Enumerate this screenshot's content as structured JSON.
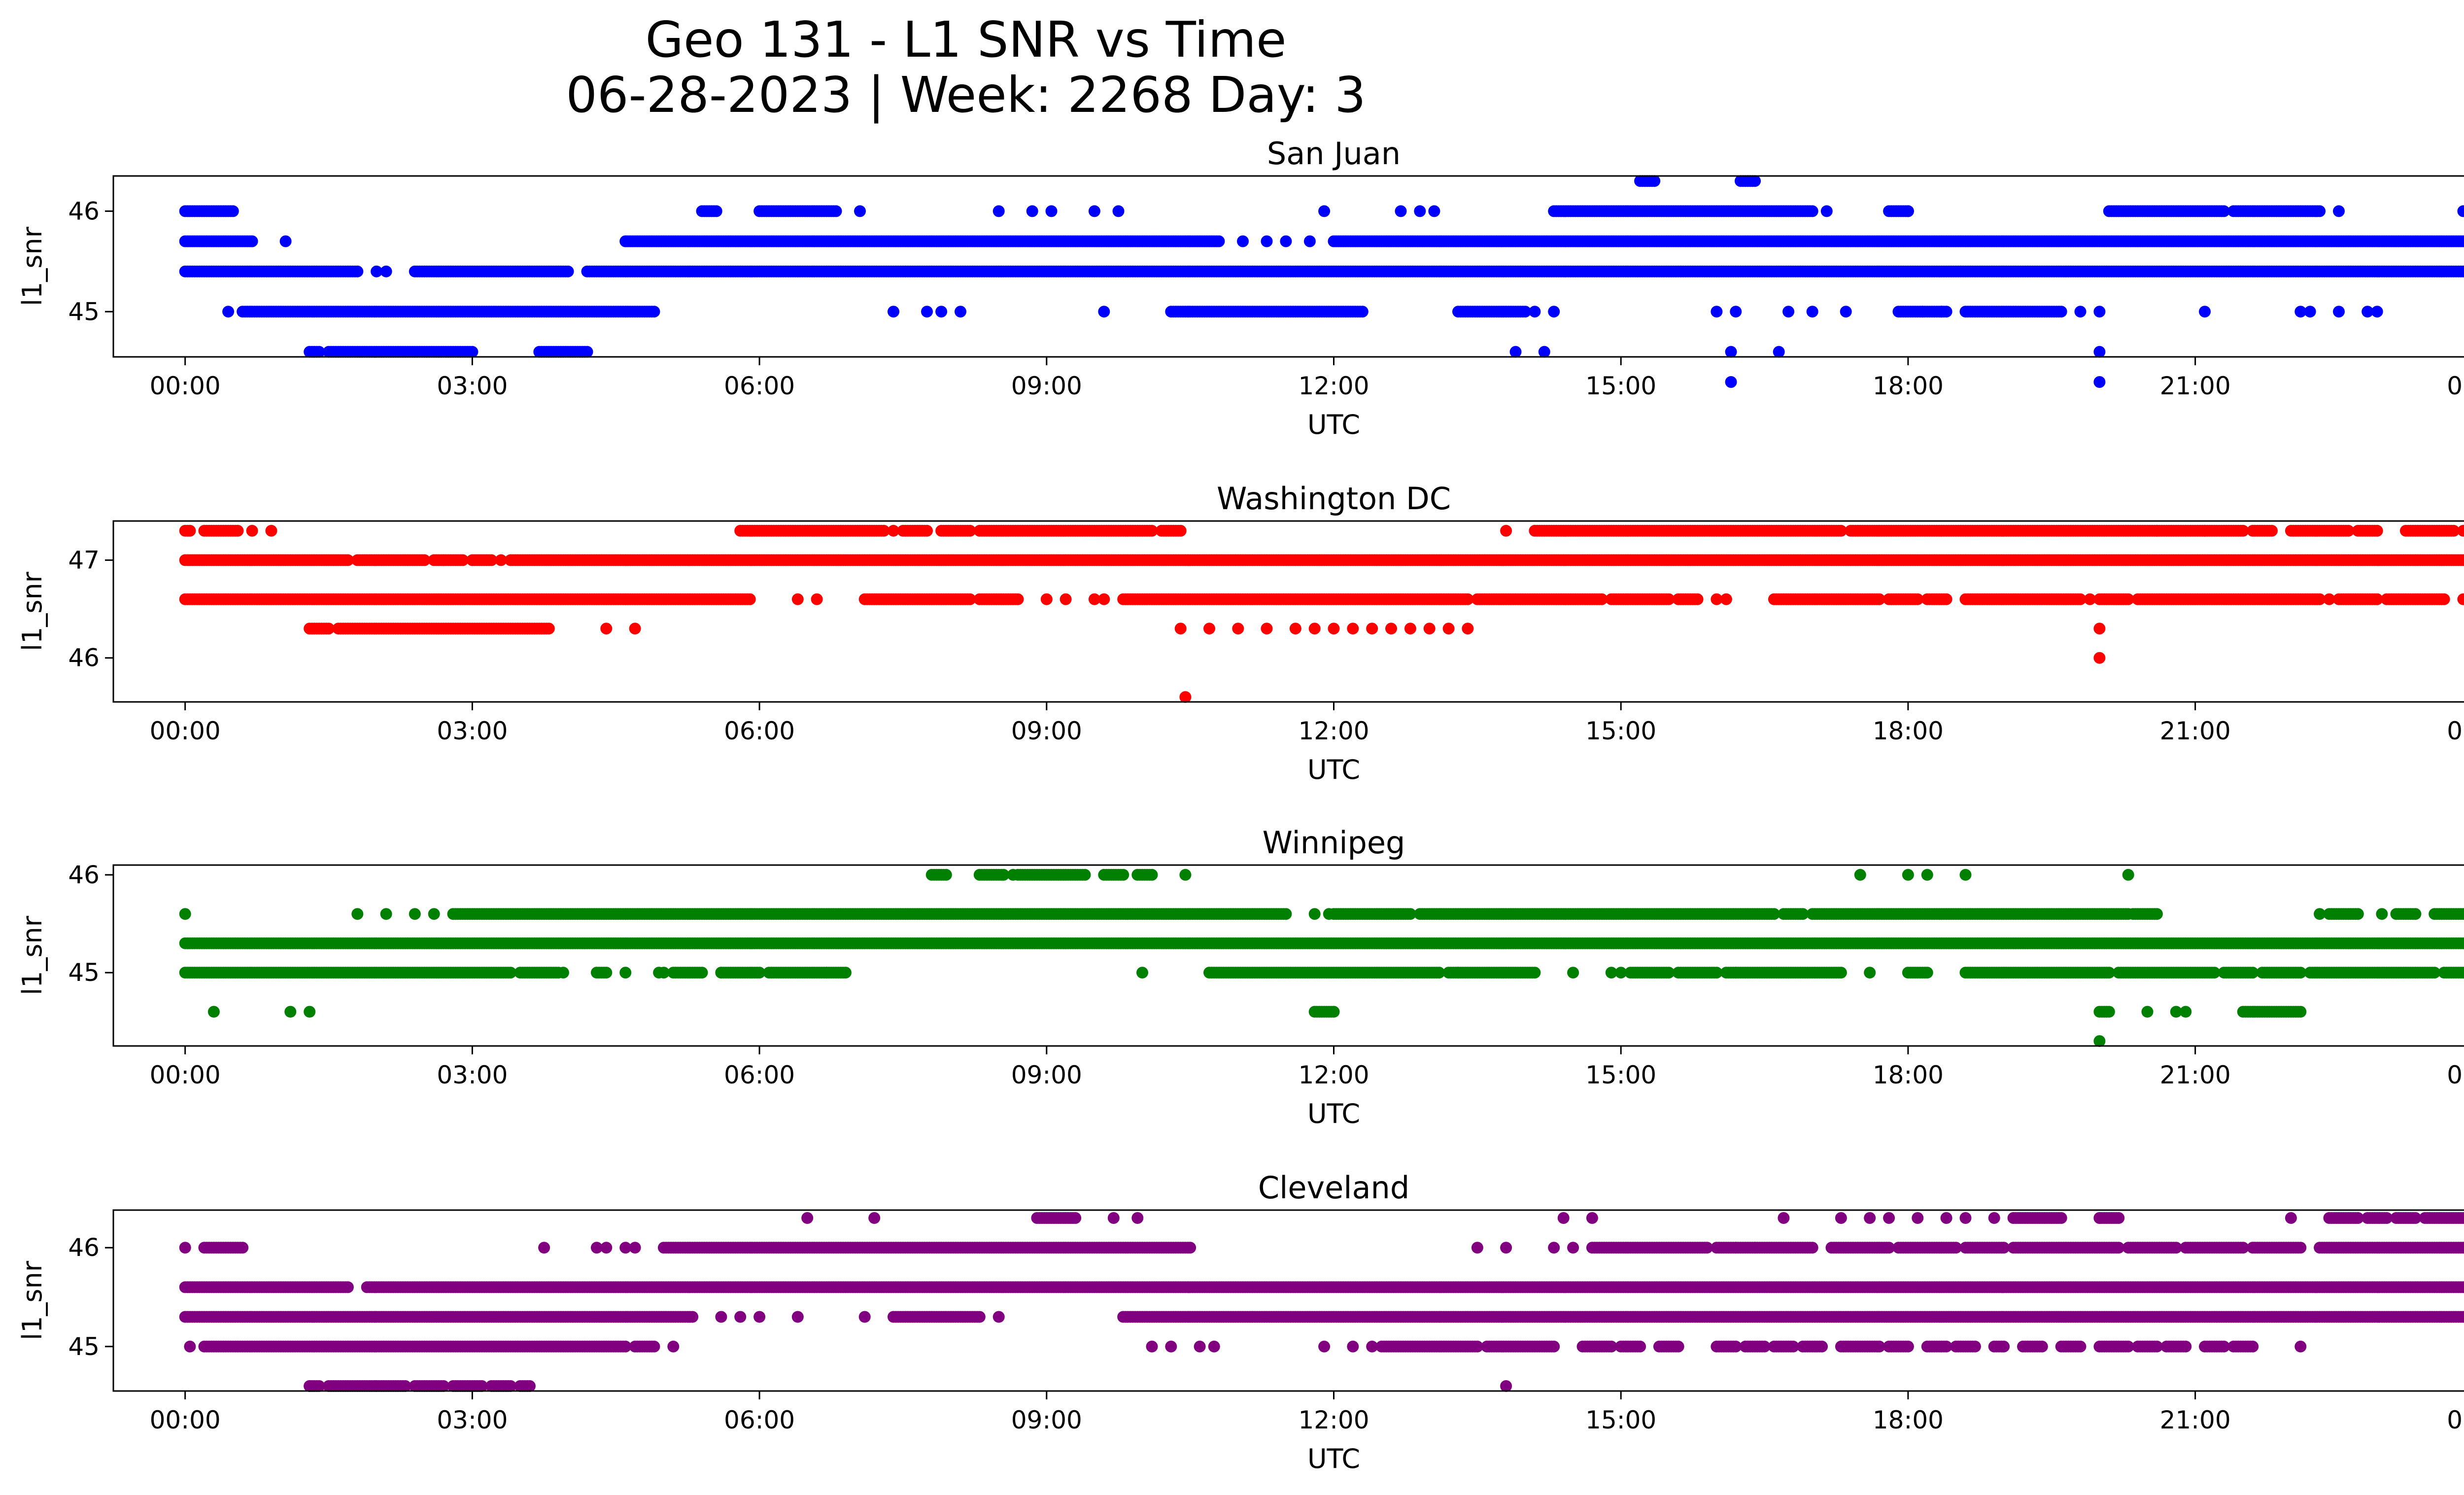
{
  "figure": {
    "title_line1": "Geo 131 - L1 SNR vs Time",
    "title_line2": "06-28-2023 | Week: 2268 Day: 3"
  },
  "chart_data": [
    {
      "type": "scatter",
      "title": "San Juan",
      "xlabel": "UTC",
      "ylabel": "l1_snr",
      "color": "#0000ff",
      "xlim": [
        -0.75,
        24.75
      ],
      "ylim": [
        44.55,
        46.35
      ],
      "xticks": [
        "00:00",
        "03:00",
        "06:00",
        "09:00",
        "12:00",
        "15:00",
        "18:00",
        "21:00",
        "00:00"
      ],
      "yticks": [
        45,
        46
      ],
      "series": [
        {
          "y": 46.3,
          "x_ranges": [
            [
              15.2,
              15.35
            ],
            [
              16.25,
              16.4
            ]
          ],
          "x_points": []
        },
        {
          "y": 46.0,
          "x_ranges": [
            [
              0.0,
              0.5
            ],
            [
              5.4,
              5.55
            ],
            [
              6.0,
              6.8
            ],
            [
              14.3,
              17.0
            ],
            [
              17.8,
              18.0
            ],
            [
              20.1,
              21.3
            ],
            [
              21.4,
              22.3
            ],
            [
              23.8,
              24.0
            ]
          ],
          "x_points": [
            7.05,
            8.5,
            8.85,
            9.05,
            9.5,
            9.75,
            11.9,
            12.7,
            12.9,
            13.05,
            17.15,
            18.0,
            22.5
          ]
        },
        {
          "y": 45.7,
          "x_ranges": [
            [
              0.0,
              0.7
            ],
            [
              4.6,
              10.8
            ],
            [
              12.0,
              24.0
            ]
          ],
          "x_points": [
            1.05,
            11.05,
            11.3,
            11.5,
            11.75
          ]
        },
        {
          "y": 45.4,
          "x_ranges": [
            [
              0.0,
              1.8
            ],
            [
              2.4,
              4.0
            ],
            [
              4.2,
              24.0
            ]
          ],
          "x_points": [
            2.0,
            2.1
          ]
        },
        {
          "y": 45.0,
          "x_ranges": [
            [
              0.6,
              4.9
            ],
            [
              10.3,
              12.3
            ],
            [
              13.3,
              14.0
            ],
            [
              17.9,
              18.4
            ],
            [
              18.6,
              19.6
            ]
          ],
          "x_points": [
            0.45,
            7.4,
            7.75,
            7.9,
            8.1,
            9.6,
            14.1,
            14.3,
            16.0,
            16.2,
            16.75,
            17.0,
            17.35,
            18.15,
            18.35,
            19.8,
            20.0,
            21.1,
            22.1,
            22.2,
            22.5,
            22.8,
            22.9
          ]
        },
        {
          "y": 44.6,
          "x_ranges": [
            [
              1.3,
              1.4
            ],
            [
              1.5,
              3.0
            ],
            [
              3.7,
              4.2
            ]
          ],
          "x_points": [
            13.9,
            14.2,
            16.15,
            16.65,
            20.0
          ]
        },
        {
          "y": 44.3,
          "x_ranges": [],
          "x_points": [
            16.15,
            20.0
          ]
        }
      ]
    },
    {
      "type": "scatter",
      "title": "Washington DC",
      "xlabel": "UTC",
      "ylabel": "l1_snr",
      "color": "#ff0000",
      "xlim": [
        -0.75,
        24.75
      ],
      "ylim": [
        45.55,
        47.4
      ],
      "xticks": [
        "00:00",
        "03:00",
        "06:00",
        "09:00",
        "12:00",
        "15:00",
        "18:00",
        "21:00",
        "00:00"
      ],
      "yticks": [
        46,
        47
      ],
      "series": [
        {
          "y": 47.3,
          "x_ranges": [
            [
              0.0,
              0.05
            ],
            [
              0.2,
              0.55
            ],
            [
              5.8,
              7.3
            ],
            [
              7.5,
              7.75
            ],
            [
              7.9,
              8.2
            ],
            [
              8.3,
              10.1
            ],
            [
              10.2,
              10.4
            ],
            [
              14.1,
              17.3
            ],
            [
              17.4,
              21.5
            ],
            [
              21.6,
              21.8
            ],
            [
              22.0,
              22.6
            ],
            [
              22.7,
              22.9
            ],
            [
              23.2,
              23.7
            ],
            [
              23.8,
              24.0
            ]
          ],
          "x_points": [
            0.7,
            0.9,
            7.4,
            13.8,
            20.6,
            21.1
          ]
        },
        {
          "y": 47.0,
          "x_ranges": [
            [
              0.0,
              1.7
            ],
            [
              1.8,
              2.5
            ],
            [
              2.6,
              2.9
            ],
            [
              3.0,
              3.2
            ],
            [
              3.4,
              24.0
            ]
          ],
          "x_points": [
            2.7,
            3.3
          ]
        },
        {
          "y": 46.6,
          "x_ranges": [
            [
              0.0,
              5.9
            ],
            [
              7.1,
              8.2
            ],
            [
              8.3,
              8.7
            ],
            [
              9.8,
              13.4
            ],
            [
              13.5,
              14.8
            ],
            [
              14.9,
              15.5
            ],
            [
              15.6,
              15.8
            ],
            [
              16.6,
              17.7
            ],
            [
              17.8,
              18.1
            ],
            [
              18.2,
              18.4
            ],
            [
              18.6,
              19.8
            ],
            [
              20.0,
              20.3
            ],
            [
              20.4,
              22.3
            ],
            [
              22.5,
              22.9
            ],
            [
              23.0,
              23.6
            ],
            [
              23.8,
              24.0
            ]
          ],
          "x_points": [
            6.4,
            6.6,
            9.0,
            9.2,
            9.5,
            9.6,
            16.0,
            16.1,
            19.9,
            22.4
          ]
        },
        {
          "y": 46.3,
          "x_ranges": [
            [
              1.3,
              1.5
            ],
            [
              1.6,
              3.8
            ]
          ],
          "x_points": [
            4.4,
            4.7,
            10.4,
            10.7,
            11.0,
            11.3,
            11.6,
            11.8,
            12.0,
            12.2,
            12.4,
            12.6,
            12.8,
            13.0,
            13.2,
            13.4,
            20.0
          ]
        },
        {
          "y": 46.0,
          "x_ranges": [],
          "x_points": [
            20.0
          ]
        },
        {
          "y": 45.6,
          "x_ranges": [],
          "x_points": [
            10.45
          ]
        }
      ]
    },
    {
      "type": "scatter",
      "title": "Winnipeg",
      "xlabel": "UTC",
      "ylabel": "l1_snr",
      "color": "#008000",
      "xlim": [
        -0.75,
        24.75
      ],
      "ylim": [
        44.25,
        46.1
      ],
      "xticks": [
        "00:00",
        "03:00",
        "06:00",
        "09:00",
        "12:00",
        "15:00",
        "18:00",
        "21:00",
        "00:00"
      ],
      "yticks": [
        45,
        46
      ],
      "series": [
        {
          "y": 46.0,
          "x_ranges": [
            [
              7.8,
              7.95
            ],
            [
              8.3,
              8.55
            ],
            [
              8.7,
              9.4
            ],
            [
              9.6,
              9.8
            ],
            [
              9.95,
              10.1
            ]
          ],
          "x_points": [
            8.65,
            10.45,
            17.5,
            18.0,
            18.2,
            18.6,
            20.3
          ]
        },
        {
          "y": 45.6,
          "x_ranges": [
            [
              2.8,
              11.5
            ],
            [
              12.0,
              12.8
            ],
            [
              12.9,
              16.6
            ],
            [
              16.7,
              16.9
            ],
            [
              17.0,
              20.3
            ],
            [
              20.35,
              20.6
            ],
            [
              22.4,
              22.7
            ],
            [
              23.1,
              23.3
            ],
            [
              23.5,
              24.0
            ]
          ],
          "x_points": [
            0.0,
            1.8,
            2.1,
            2.4,
            2.6,
            11.8,
            11.95,
            22.3,
            22.95
          ]
        },
        {
          "y": 45.3,
          "x_ranges": [
            [
              0.0,
              24.0
            ]
          ],
          "x_points": []
        },
        {
          "y": 45.0,
          "x_ranges": [
            [
              0.0,
              3.4
            ],
            [
              3.5,
              3.9
            ],
            [
              4.3,
              4.4
            ],
            [
              5.1,
              5.4
            ],
            [
              5.6,
              6.0
            ],
            [
              6.1,
              6.9
            ],
            [
              10.7,
              13.1
            ],
            [
              13.2,
              14.1
            ],
            [
              15.1,
              15.5
            ],
            [
              15.6,
              16.0
            ],
            [
              16.1,
              17.3
            ],
            [
              18.0,
              18.2
            ],
            [
              18.6,
              20.1
            ],
            [
              20.2,
              21.2
            ],
            [
              21.3,
              21.6
            ],
            [
              21.7,
              22.1
            ],
            [
              22.2,
              23.5
            ],
            [
              23.6,
              23.8
            ],
            [
              23.9,
              24.0
            ]
          ],
          "x_points": [
            3.95,
            4.6,
            4.95,
            5.0,
            5.6,
            6.7,
            10.0,
            13.3,
            14.5,
            14.9,
            15.0,
            16.2,
            17.6
          ]
        },
        {
          "y": 44.6,
          "x_ranges": [
            [
              11.8,
              12.0
            ],
            [
              20.0,
              20.1
            ],
            [
              21.5,
              22.1
            ]
          ],
          "x_points": [
            0.3,
            1.1,
            1.3,
            20.5,
            20.8,
            20.9
          ]
        },
        {
          "y": 44.3,
          "x_ranges": [],
          "x_points": [
            20.0
          ]
        }
      ]
    },
    {
      "type": "scatter",
      "title": "Cleveland",
      "xlabel": "UTC",
      "ylabel": "l1_snr",
      "color": "#800080",
      "xlim": [
        -0.75,
        24.75
      ],
      "ylim": [
        44.55,
        46.38
      ],
      "xticks": [
        "00:00",
        "03:00",
        "06:00",
        "09:00",
        "12:00",
        "15:00",
        "18:00",
        "21:00",
        "00:00"
      ],
      "yticks": [
        45,
        46
      ],
      "series": [
        {
          "y": 46.3,
          "x_ranges": [
            [
              8.9,
              9.3
            ],
            [
              19.1,
              19.6
            ],
            [
              20.0,
              20.2
            ],
            [
              22.4,
              22.7
            ],
            [
              22.8,
              23.0
            ],
            [
              23.1,
              23.3
            ],
            [
              23.4,
              23.8
            ],
            [
              23.9,
              24.0
            ]
          ],
          "x_points": [
            6.5,
            7.2,
            9.7,
            9.95,
            14.4,
            14.7,
            16.7,
            17.3,
            17.6,
            17.8,
            18.1,
            18.4,
            18.6,
            18.9,
            20.0,
            22.0
          ]
        },
        {
          "y": 46.0,
          "x_ranges": [
            [
              0.2,
              0.6
            ],
            [
              5.0,
              10.5
            ],
            [
              14.7,
              15.9
            ],
            [
              16.0,
              17.0
            ],
            [
              17.2,
              17.8
            ],
            [
              17.9,
              18.5
            ],
            [
              18.6,
              19.0
            ],
            [
              19.1,
              20.2
            ],
            [
              20.3,
              20.8
            ],
            [
              20.9,
              21.5
            ],
            [
              21.6,
              22.1
            ],
            [
              22.3,
              24.0
            ]
          ],
          "x_points": [
            0.0,
            3.75,
            4.3,
            4.4,
            4.6,
            4.7,
            13.5,
            13.8,
            14.3,
            14.5,
            16.2,
            16.4
          ]
        },
        {
          "y": 45.6,
          "x_ranges": [
            [
              0.0,
              1.7
            ],
            [
              1.9,
              24.0
            ]
          ],
          "x_points": []
        },
        {
          "y": 45.3,
          "x_ranges": [
            [
              0.0,
              5.3
            ],
            [
              7.4,
              8.3
            ],
            [
              9.8,
              24.0
            ]
          ],
          "x_points": [
            5.6,
            5.8,
            6.0,
            6.4,
            7.1,
            8.5
          ]
        },
        {
          "y": 45.0,
          "x_ranges": [
            [
              0.2,
              4.6
            ],
            [
              4.7,
              4.9
            ],
            [
              12.5,
              13.5
            ],
            [
              13.6,
              14.3
            ],
            [
              14.6,
              14.9
            ],
            [
              15.0,
              15.2
            ],
            [
              15.4,
              15.6
            ],
            [
              16.0,
              16.2
            ],
            [
              16.3,
              16.5
            ],
            [
              16.6,
              16.8
            ],
            [
              16.9,
              17.1
            ],
            [
              17.3,
              17.7
            ],
            [
              17.8,
              18.0
            ],
            [
              18.2,
              18.4
            ],
            [
              18.5,
              18.7
            ],
            [
              18.9,
              19.0
            ],
            [
              19.2,
              19.4
            ],
            [
              19.6,
              19.8
            ],
            [
              20.0,
              20.3
            ],
            [
              20.4,
              20.6
            ],
            [
              20.7,
              20.9
            ],
            [
              21.1,
              21.3
            ],
            [
              21.4,
              21.6
            ]
          ],
          "x_points": [
            0.05,
            5.1,
            10.1,
            10.3,
            10.6,
            10.75,
            11.9,
            12.2,
            12.4,
            22.1
          ]
        },
        {
          "y": 44.6,
          "x_ranges": [
            [
              1.3,
              1.4
            ],
            [
              1.5,
              2.3
            ],
            [
              2.4,
              2.7
            ],
            [
              2.8,
              3.1
            ],
            [
              3.2,
              3.4
            ],
            [
              3.5,
              3.6
            ]
          ],
          "x_points": [
            1.3,
            13.8
          ]
        }
      ]
    }
  ]
}
